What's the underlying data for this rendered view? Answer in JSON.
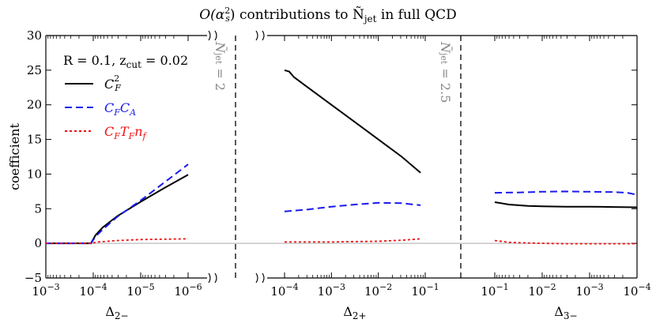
{
  "chart_data": {
    "type": "line",
    "title_prefix": "O(α",
    "title_sup": "2",
    "title_sub": "s",
    "title_mid": ") contributions to Ñ",
    "title_jet_sub": "jet",
    "title_suffix": " in full QCD",
    "ylabel": "coefficient",
    "ylim": [
      -5,
      30
    ],
    "y_ticks": [
      "−5",
      "0",
      "5",
      "10",
      "15",
      "20",
      "25",
      "30"
    ],
    "annotation": "R = 0.1,  z",
    "annotation_sub": "cut",
    "annotation_tail": " = 0.02",
    "legend": [
      {
        "label": "C",
        "sub": "F",
        "sup": "2",
        "color": "#000000",
        "style": "solid"
      },
      {
        "label": "C",
        "sub": "F",
        "label2": "C",
        "sub2": "A",
        "color": "#1a1aee",
        "style": "dashed"
      },
      {
        "label": "C",
        "sub": "F",
        "label2": "T",
        "sub2": "F",
        "label3": "n",
        "sub3": "f",
        "color": "#ee1111",
        "style": "dotted"
      }
    ],
    "vertical_labels": [
      {
        "text": "Ñ",
        "sub": "jet",
        "tail": " = 2"
      },
      {
        "text": "Ñ",
        "sub": "jet",
        "tail": " = 2.5"
      }
    ],
    "panels": [
      {
        "xlabel": "Δ",
        "xlabel_sub": "2−",
        "x_ticks": [
          {
            "base": "10",
            "exp": "−3",
            "pos": 0
          },
          {
            "base": "10",
            "exp": "−4",
            "pos": 1
          },
          {
            "base": "10",
            "exp": "−5",
            "pos": 2
          },
          {
            "base": "10",
            "exp": "−6",
            "pos": 3
          }
        ],
        "series": [
          {
            "name": "CF^2",
            "x": [
              0,
              0.5,
              0.95,
              1.05,
              1.2,
              1.5,
              2.0,
              2.5,
              3.0
            ],
            "y": [
              0,
              0,
              0,
              1.2,
              2.3,
              3.9,
              6.0,
              8.0,
              9.9
            ]
          },
          {
            "name": "CF CA",
            "x": [
              0,
              0.5,
              0.95,
              1.05,
              1.2,
              1.5,
              2.0,
              2.5,
              3.0
            ],
            "y": [
              0,
              0,
              0,
              1.0,
              2.0,
              3.8,
              6.2,
              8.8,
              11.4
            ]
          },
          {
            "name": "CF TF nf",
            "x": [
              0,
              0.5,
              0.95,
              1.1,
              1.5,
              2.0,
              2.5,
              3.0
            ],
            "y": [
              0,
              0,
              0,
              0.2,
              0.4,
              0.55,
              0.6,
              0.65
            ]
          }
        ]
      },
      {
        "xlabel": "Δ",
        "xlabel_sub": "2+",
        "x_ticks": [
          {
            "base": "10",
            "exp": "−4",
            "pos": 0
          },
          {
            "base": "10",
            "exp": "−3",
            "pos": 1
          },
          {
            "base": "10",
            "exp": "−2",
            "pos": 2
          },
          {
            "base": "10",
            "exp": "−1",
            "pos": 3
          }
        ],
        "series": [
          {
            "name": "CF^2",
            "x": [
              0,
              0.1,
              0.2,
              0.4,
              0.7,
              1.0,
              1.5,
              2.0,
              2.5,
              2.9
            ],
            "y": [
              25,
              24.8,
              24,
              23,
              21.5,
              20,
              17.5,
              15,
              12.5,
              10.2
            ]
          },
          {
            "name": "CF CA",
            "x": [
              0,
              0.5,
              1.0,
              1.5,
              2.0,
              2.5,
              2.9
            ],
            "y": [
              4.6,
              4.9,
              5.3,
              5.6,
              5.85,
              5.8,
              5.5
            ]
          },
          {
            "name": "CF TF nf",
            "x": [
              0,
              0.5,
              1.0,
              1.5,
              2.0,
              2.5,
              2.9
            ],
            "y": [
              0.2,
              0.2,
              0.2,
              0.25,
              0.3,
              0.45,
              0.65
            ]
          }
        ]
      },
      {
        "xlabel": "Δ",
        "xlabel_sub": "3−",
        "x_ticks": [
          {
            "base": "10",
            "exp": "−1",
            "pos": 0
          },
          {
            "base": "10",
            "exp": "−2",
            "pos": 1
          },
          {
            "base": "10",
            "exp": "−3",
            "pos": 2
          },
          {
            "base": "10",
            "exp": "−4",
            "pos": 3
          }
        ],
        "series": [
          {
            "name": "CF^2",
            "x": [
              0,
              0.3,
              0.7,
              1.0,
              1.5,
              2.0,
              2.5,
              3.0
            ],
            "y": [
              5.95,
              5.6,
              5.4,
              5.35,
              5.3,
              5.3,
              5.25,
              5.2
            ]
          },
          {
            "name": "CF CA",
            "x": [
              0,
              0.5,
              1.0,
              1.5,
              2.0,
              2.5,
              2.8,
              3.0
            ],
            "y": [
              7.3,
              7.35,
              7.45,
              7.5,
              7.45,
              7.4,
              7.3,
              7.0
            ]
          },
          {
            "name": "CF TF nf",
            "x": [
              0,
              0.3,
              0.7,
              1.0,
              1.5,
              2.0,
              2.5,
              3.0
            ],
            "y": [
              0.4,
              0.15,
              0.05,
              0.0,
              -0.05,
              -0.05,
              -0.05,
              -0.05
            ]
          }
        ]
      }
    ]
  }
}
